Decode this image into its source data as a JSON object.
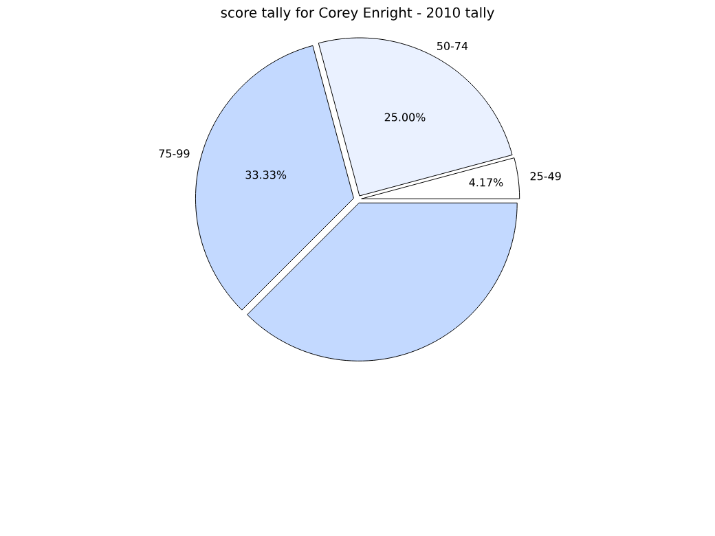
{
  "chart_data": {
    "type": "pie",
    "title": "score tally for Corey Enright - 2010 tally",
    "categories": [
      "25-49",
      "50-74",
      "75-99",
      null
    ],
    "values": [
      4.17,
      25.0,
      33.33,
      37.5
    ],
    "colors": [
      "#ffffff",
      "#eaf1ff",
      "#c3d9ff",
      "#c3d9ff"
    ],
    "value_labels": [
      "4.17%",
      "25.00%",
      "33.33%",
      null
    ]
  }
}
